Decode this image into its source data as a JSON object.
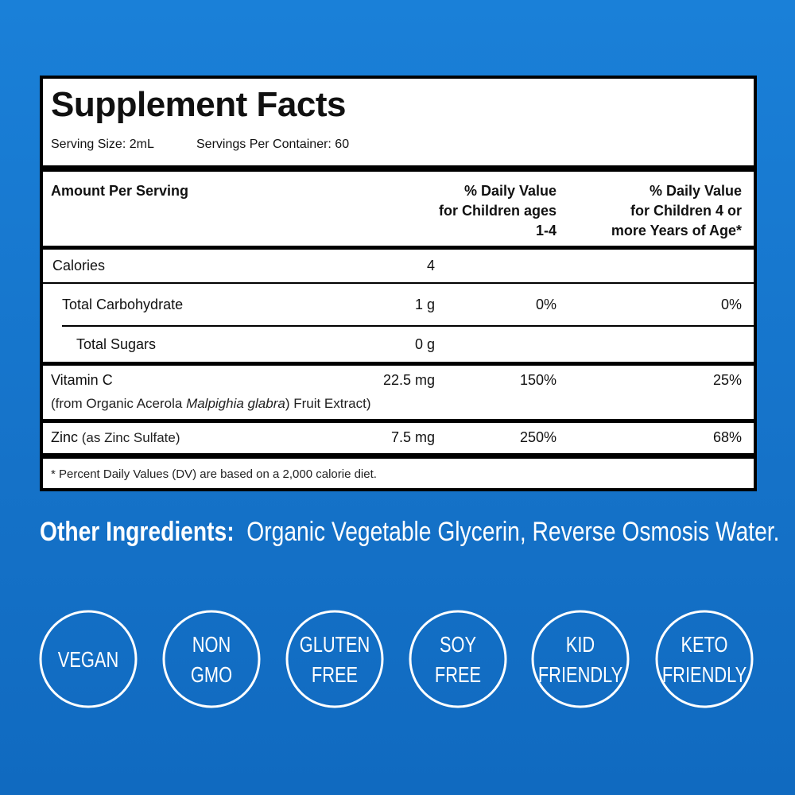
{
  "label": {
    "title": "Supplement Facts",
    "serving_size": "Serving Size: 2mL",
    "servings_per_container": "Servings Per Container: 60",
    "header": {
      "amount": "Amount Per Serving",
      "dv_children_1_4": [
        "% Daily Value",
        "for Children ages",
        "1-4"
      ],
      "dv_children_4_plus": [
        "% Daily Value",
        "for Children 4 or",
        "more Years of Age*"
      ]
    },
    "rows": [
      {
        "name": "Calories",
        "amount": "4"
      },
      {
        "name": "Total Carbohydrate",
        "amount": "1 g",
        "dv1": "0%",
        "dv2": "0%"
      },
      {
        "name": "Total Sugars",
        "amount": "0 g"
      },
      {
        "name": "Vitamin C",
        "amount": "22.5 mg",
        "dv1": "150%",
        "dv2": "25%",
        "source": [
          "(from Organic Acerola ",
          "Malpighia glabra",
          ") Fruit Extract)"
        ]
      },
      {
        "name": "Zinc",
        "source": " (as Zinc Sulfate)",
        "amount": "7.5 mg",
        "dv1": "250%",
        "dv2": "68%"
      }
    ],
    "footnote": "* Percent Daily Values (DV) are based on a 2,000 calorie diet."
  },
  "other_ingredients": {
    "label": "Other Ingredients:",
    "text": "Organic Vegetable Glycerin, Reverse Osmosis Water."
  },
  "badges": [
    {
      "lines": [
        "VEGAN"
      ]
    },
    {
      "lines": [
        "NON",
        "GMO"
      ]
    },
    {
      "lines": [
        "GLUTEN",
        "FREE"
      ]
    },
    {
      "lines": [
        "SOY",
        "FREE"
      ]
    },
    {
      "lines": [
        "KID",
        "FRIENDLY"
      ]
    },
    {
      "lines": [
        "KETO",
        "FRIENDLY"
      ]
    }
  ]
}
